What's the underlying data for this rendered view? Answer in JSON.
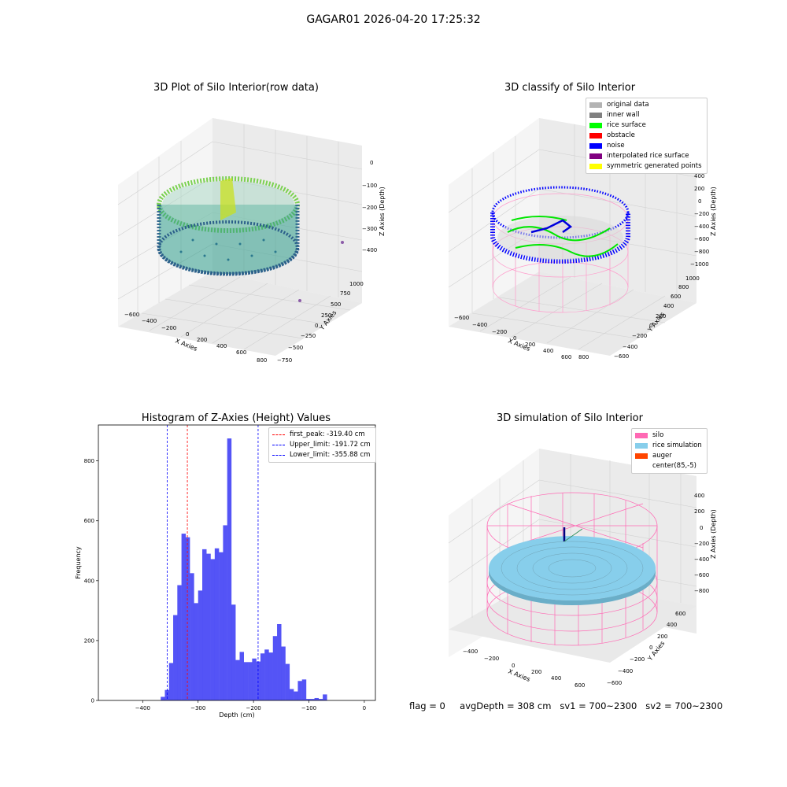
{
  "suptitle": "GAGAR01 2026-04-20 17:25:32",
  "panel1": {
    "title": "3D Plot of Silo Interior(row data)",
    "xlabel": "X Axies",
    "ylabel": "Y Axies",
    "zlabel": "Z Axies (Depth)",
    "xticks": [
      "−600",
      "−400",
      "−200",
      "0",
      "200",
      "400",
      "600",
      "800"
    ],
    "yticks": [
      "−750",
      "−500",
      "−250",
      "0",
      "250",
      "500",
      "750",
      "1000"
    ],
    "zticks": [
      "0",
      "−100",
      "−200",
      "−300",
      "−400"
    ]
  },
  "panel2": {
    "title": "3D classify of Silo Interior",
    "xlabel": "X Axies",
    "ylabel": "Y Axies",
    "zlabel": "Z Axies (Depth)",
    "xticks": [
      "−600",
      "−400",
      "−200",
      "0",
      "200",
      "400",
      "600",
      "800"
    ],
    "yticks": [
      "−600",
      "−400",
      "−200",
      "0",
      "200",
      "400",
      "600",
      "800",
      "1000"
    ],
    "zticks": [
      "400",
      "200",
      "0",
      "−200",
      "−400",
      "−600",
      "−800",
      "−1000"
    ],
    "legend": [
      {
        "label": "original data",
        "color": "#b3b3b3"
      },
      {
        "label": "inner wall",
        "color": "#808080"
      },
      {
        "label": "rice surface",
        "color": "#00ff00"
      },
      {
        "label": "obstacle",
        "color": "#ff0000"
      },
      {
        "label": "noise",
        "color": "#0000ff"
      },
      {
        "label": "interpolated rice surface",
        "color": "#800080"
      },
      {
        "label": "symmetric generated points",
        "color": "#ffff00"
      }
    ]
  },
  "panel3": {
    "title": "Histogram of Z-Axies (Height) Values",
    "xlabel": "Depth (cm)",
    "ylabel": "Frequency",
    "xticks": [
      "−400",
      "−300",
      "−200",
      "−100",
      "0"
    ],
    "yticks": [
      "0",
      "200",
      "400",
      "600",
      "800"
    ],
    "legend": [
      {
        "label": "first_peak: -319.40 cm",
        "color": "#ff0000"
      },
      {
        "label": "Upper_limit: -191.72 cm",
        "color": "#0000ff"
      },
      {
        "label": "Lower_limit: -355.88 cm",
        "color": "#0000ff"
      }
    ]
  },
  "panel4": {
    "title": "3D simulation of Silo Interior",
    "xlabel": "X Axies",
    "ylabel": "Y Axies",
    "zlabel": "Z Axies (Depth)",
    "xticks": [
      "−400",
      "−200",
      "0",
      "200",
      "400",
      "600"
    ],
    "yticks": [
      "−600",
      "−400",
      "−200",
      "0",
      "200",
      "400",
      "600"
    ],
    "zticks": [
      "400",
      "200",
      "0",
      "−200",
      "−400",
      "−600",
      "−800"
    ],
    "legend": [
      {
        "label": "silo",
        "color": "#ff69b4"
      },
      {
        "label": "rice simulation",
        "color": "#87ceeb"
      },
      {
        "label": "auger",
        "color": "#ff4500"
      },
      {
        "label": "center(85,-5)",
        "color": ""
      }
    ]
  },
  "footer": {
    "flag": "flag = 0",
    "avg": "avgDepth = 308 cm",
    "sv1": "sv1 = 700~2300",
    "sv2": "sv2 = 700~2300"
  },
  "chart_data": [
    {
      "type": "bar",
      "title": "Histogram of Z-Axies (Height) Values",
      "xlabel": "Depth (cm)",
      "ylabel": "Frequency",
      "xlim": [
        -480,
        20
      ],
      "ylim": [
        0,
        920
      ],
      "bin_width": 7.5,
      "bin_start": -367.5,
      "values": [
        12,
        35,
        125,
        285,
        385,
        557,
        545,
        425,
        325,
        367,
        505,
        490,
        472,
        508,
        495,
        585,
        875,
        320,
        135,
        162,
        128,
        128,
        140,
        130,
        157,
        170,
        160,
        215,
        255,
        180,
        122,
        38,
        30,
        65,
        70,
        5,
        5,
        8,
        5,
        20
      ],
      "vlines": [
        {
          "name": "first_peak: -319.40 cm",
          "x": -319.4,
          "color": "#ff0000"
        },
        {
          "name": "Upper_limit: -191.72 cm",
          "x": -191.72,
          "color": "#0000ff"
        },
        {
          "name": "Lower_limit: -355.88 cm",
          "x": -355.88,
          "color": "#0000ff"
        }
      ],
      "color": "#4b4bf5"
    }
  ]
}
